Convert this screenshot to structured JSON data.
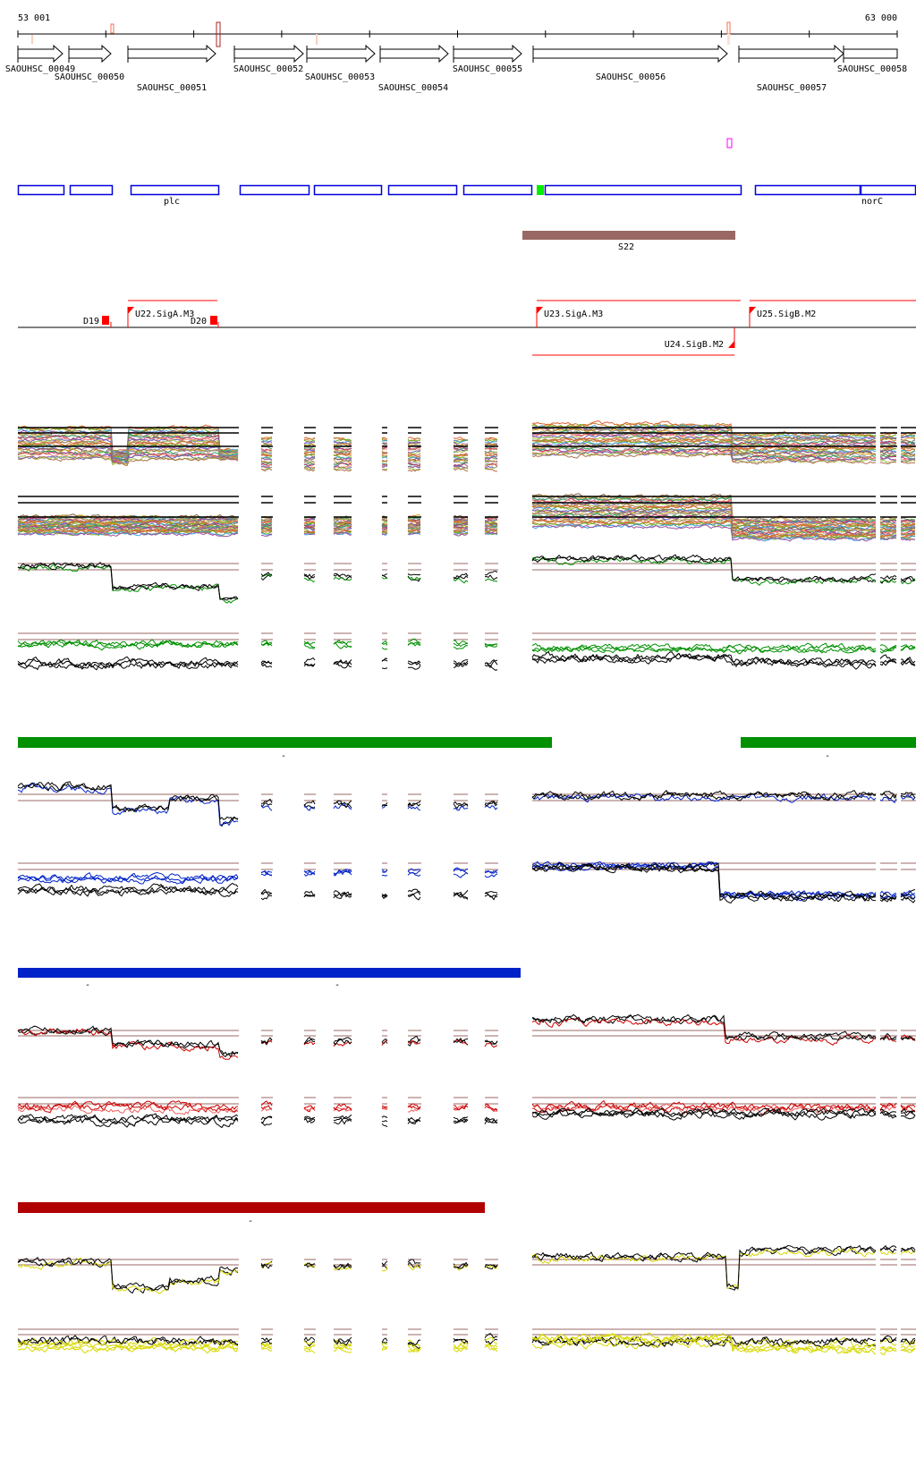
{
  "ruler": {
    "start_label": "53 001",
    "end_label": "63 000",
    "start_bp": 53001,
    "end_bp": 63000,
    "tick_interval_bp": 1000
  },
  "genes": [
    {
      "label": "SAOUHSC_00049"
    },
    {
      "label": "SAOUHSC_00050"
    },
    {
      "label": "SAOUHSC_00051"
    },
    {
      "label": "SAOUHSC_00052"
    },
    {
      "label": "SAOUHSC_00053"
    },
    {
      "label": "SAOUHSC_00054"
    },
    {
      "label": "SAOUHSC_00055"
    },
    {
      "label": "SAOUHSC_00056"
    },
    {
      "label": "SAOUHSC_00057"
    },
    {
      "label": "SAOUHSC_00058"
    }
  ],
  "annotation_labels": {
    "plc": "plc",
    "norC": "norC"
  },
  "segment": {
    "label": "S22",
    "color": "#9a6864"
  },
  "promoters": {
    "D19": "D19",
    "D20": "D20",
    "U22": "U22.SigA.M3",
    "U23": "U23.SigA.M3",
    "U24": "U24.SigB.M2",
    "U25": "U25.SigB.M2"
  },
  "condition_bars": [
    {
      "color": "#009000",
      "marks": [
        "-",
        "-"
      ]
    },
    {
      "color": "#0022c8",
      "marks": [
        "-",
        "-"
      ]
    },
    {
      "color": "#b00000",
      "marks": [
        "-"
      ]
    }
  ],
  "colors": {
    "cds": "#0000dd",
    "tss": "#ff0000",
    "threshold": "#9a6864",
    "green": "#009000",
    "blue": "#0022c8",
    "red": "#cc0000",
    "yellow": "#d8d800"
  }
}
